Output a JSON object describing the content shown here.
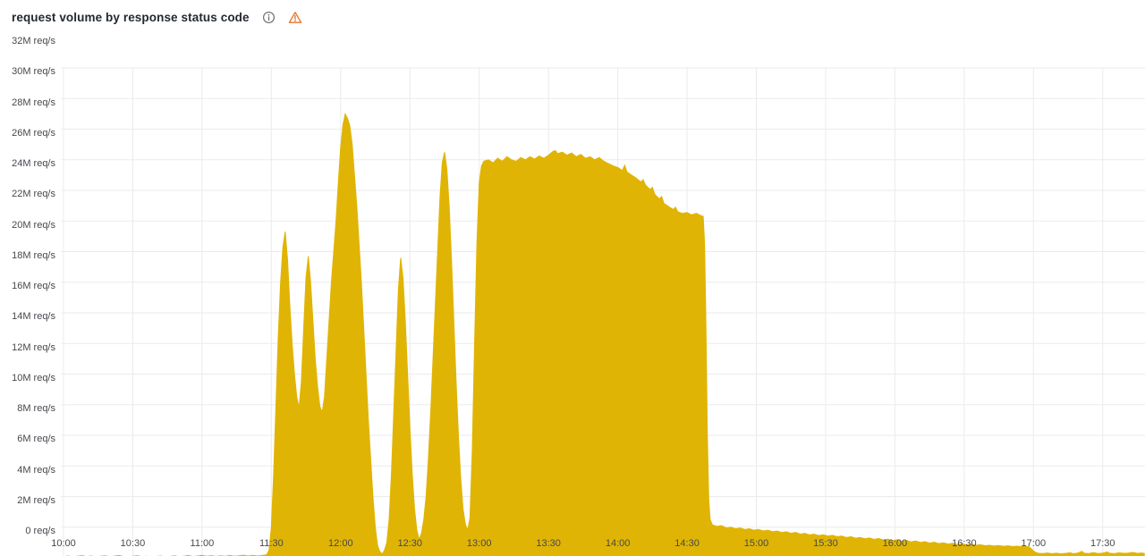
{
  "panel": {
    "title": "request volume by response status code",
    "icons": {
      "info": "info-icon",
      "warning": "warning-icon"
    }
  },
  "colors": {
    "background": "#FFFFFF",
    "series_fill": "#E0B404",
    "gridline": "#EAEBED",
    "axis_text": "#45484D",
    "title_text": "#24292E",
    "info_icon": "#6E7077",
    "warning_icon": "#E8762C"
  },
  "chart_data": {
    "type": "area",
    "title": "request volume by response status code",
    "unit": "req/s",
    "legend_position": "none",
    "grid": true,
    "x_axis": {
      "start_time": "10:00",
      "tick_interval_minutes": 30,
      "total_minutes": 468,
      "tick_labels": [
        "10:00",
        "10:30",
        "11:00",
        "11:30",
        "12:00",
        "12:30",
        "13:00",
        "13:30",
        "14:00",
        "14:30",
        "15:00",
        "15:30",
        "16:00",
        "16:30",
        "17:00",
        "17:30"
      ]
    },
    "y_axis": {
      "min": 0,
      "max": 32000000,
      "tick_step": 2000000,
      "tick_labels": [
        "0 req/s",
        "2M req/s",
        "4M req/s",
        "6M req/s",
        "8M req/s",
        "10M req/s",
        "12M req/s",
        "14M req/s",
        "16M req/s",
        "18M req/s",
        "20M req/s",
        "22M req/s",
        "24M req/s",
        "26M req/s",
        "28M req/s",
        "30M req/s",
        "32M req/s"
      ]
    },
    "series": [
      {
        "name": "request volume",
        "color": "#E0B404",
        "units": "M req/s vs minutes after 10:00",
        "points": [
          [
            0,
            0.07
          ],
          [
            2,
            0.12
          ],
          [
            4,
            0.06
          ],
          [
            6,
            0.1
          ],
          [
            8,
            0.14
          ],
          [
            10,
            0.08
          ],
          [
            12,
            0.12
          ],
          [
            14,
            0.06
          ],
          [
            16,
            0.1
          ],
          [
            18,
            0.13
          ],
          [
            20,
            0.07
          ],
          [
            22,
            0.11
          ],
          [
            24,
            0.15
          ],
          [
            26,
            0.08
          ],
          [
            28,
            0.05
          ],
          [
            30,
            0.1
          ],
          [
            32,
            0.14
          ],
          [
            34,
            0.07
          ],
          [
            36,
            0.1
          ],
          [
            38,
            0.05
          ],
          [
            40,
            0.08
          ],
          [
            42,
            0.12
          ],
          [
            44,
            0.06
          ],
          [
            46,
            0.09
          ],
          [
            48,
            0.13
          ],
          [
            50,
            0.07
          ],
          [
            52,
            0.1
          ],
          [
            54,
            0.15
          ],
          [
            56,
            0.09
          ],
          [
            58,
            0.12
          ],
          [
            60,
            0.16
          ],
          [
            62,
            0.1
          ],
          [
            64,
            0.14
          ],
          [
            66,
            0.09
          ],
          [
            68,
            0.13
          ],
          [
            70,
            0.1
          ],
          [
            72,
            0.15
          ],
          [
            74,
            0.1
          ],
          [
            76,
            0.13
          ],
          [
            78,
            0.17
          ],
          [
            80,
            0.12
          ],
          [
            82,
            0.16
          ],
          [
            84,
            0.12
          ],
          [
            86,
            0.15
          ],
          [
            88,
            0.2
          ],
          [
            89,
            0.5
          ],
          [
            90,
            2
          ],
          [
            91,
            5.5
          ],
          [
            92,
            10
          ],
          [
            93,
            14.5
          ],
          [
            94,
            18
          ],
          [
            95,
            20.3
          ],
          [
            96,
            21.3
          ],
          [
            97,
            19.5
          ],
          [
            98,
            16.5
          ],
          [
            99,
            14
          ],
          [
            100,
            12
          ],
          [
            101,
            10.5
          ],
          [
            102,
            9.8
          ],
          [
            103,
            11.5
          ],
          [
            104,
            15
          ],
          [
            105,
            18.3
          ],
          [
            106,
            19.7
          ],
          [
            107,
            18
          ],
          [
            108,
            15.5
          ],
          [
            109,
            13
          ],
          [
            110,
            11.2
          ],
          [
            111,
            9.9
          ],
          [
            112,
            9.5
          ],
          [
            113,
            10.5
          ],
          [
            114,
            13
          ],
          [
            115,
            15.5
          ],
          [
            116,
            18
          ],
          [
            117,
            20
          ],
          [
            118,
            22
          ],
          [
            119,
            24.5
          ],
          [
            120,
            26.8
          ],
          [
            121,
            28.3
          ],
          [
            122,
            29
          ],
          [
            123,
            28.7
          ],
          [
            124,
            28.2
          ],
          [
            125,
            27
          ],
          [
            126,
            25
          ],
          [
            127,
            23
          ],
          [
            128,
            20.5
          ],
          [
            129,
            18
          ],
          [
            130,
            15
          ],
          [
            131,
            12
          ],
          [
            132,
            9
          ],
          [
            133,
            6.5
          ],
          [
            134,
            4
          ],
          [
            135,
            2
          ],
          [
            136,
            0.8
          ],
          [
            137,
            0.4
          ],
          [
            138,
            0.25
          ],
          [
            139,
            0.5
          ],
          [
            140,
            1
          ],
          [
            141,
            2.5
          ],
          [
            142,
            5.5
          ],
          [
            143,
            9.5
          ],
          [
            144,
            13.5
          ],
          [
            145,
            17.5
          ],
          [
            146,
            19.6
          ],
          [
            147,
            18.3
          ],
          [
            148,
            15.5
          ],
          [
            149,
            12
          ],
          [
            150,
            8.5
          ],
          [
            151,
            5.5
          ],
          [
            152,
            3.2
          ],
          [
            153,
            1.8
          ],
          [
            154,
            1.2
          ],
          [
            155,
            1.6
          ],
          [
            156,
            2.5
          ],
          [
            157,
            4
          ],
          [
            158,
            6.5
          ],
          [
            159,
            9.5
          ],
          [
            160,
            13
          ],
          [
            161,
            16.5
          ],
          [
            162,
            20
          ],
          [
            163,
            23.5
          ],
          [
            164,
            25.8
          ],
          [
            165,
            26.5
          ],
          [
            166,
            25.4
          ],
          [
            167,
            23
          ],
          [
            168,
            19.5
          ],
          [
            169,
            15.5
          ],
          [
            170,
            11.5
          ],
          [
            171,
            8
          ],
          [
            172,
            5.2
          ],
          [
            173,
            3.2
          ],
          [
            174,
            2.2
          ],
          [
            175,
            1.8
          ],
          [
            176,
            2.6
          ],
          [
            177,
            7
          ],
          [
            178,
            14
          ],
          [
            179,
            20.5
          ],
          [
            180,
            24.5
          ],
          [
            181,
            25.6
          ],
          [
            182,
            25.9
          ],
          [
            184,
            26.0
          ],
          [
            186,
            25.8
          ],
          [
            188,
            26.1
          ],
          [
            190,
            25.9
          ],
          [
            192,
            26.2
          ],
          [
            194,
            26.0
          ],
          [
            196,
            25.9
          ],
          [
            198,
            26.15
          ],
          [
            200,
            26.0
          ],
          [
            202,
            26.2
          ],
          [
            204,
            26.05
          ],
          [
            206,
            26.25
          ],
          [
            208,
            26.1
          ],
          [
            210,
            26.3
          ],
          [
            212,
            26.55
          ],
          [
            213,
            26.6
          ],
          [
            214,
            26.4
          ],
          [
            216,
            26.5
          ],
          [
            218,
            26.3
          ],
          [
            220,
            26.45
          ],
          [
            222,
            26.2
          ],
          [
            224,
            26.35
          ],
          [
            226,
            26.1
          ],
          [
            228,
            26.2
          ],
          [
            230,
            26.0
          ],
          [
            232,
            26.15
          ],
          [
            234,
            25.9
          ],
          [
            236,
            25.75
          ],
          [
            238,
            25.6
          ],
          [
            240,
            25.5
          ],
          [
            242,
            25.3
          ],
          [
            243,
            25.65
          ],
          [
            244,
            25.2
          ],
          [
            246,
            25.0
          ],
          [
            248,
            24.8
          ],
          [
            250,
            24.55
          ],
          [
            251,
            24.7
          ],
          [
            252,
            24.35
          ],
          [
            254,
            24.05
          ],
          [
            255,
            24.2
          ],
          [
            256,
            23.75
          ],
          [
            258,
            23.45
          ],
          [
            259,
            23.6
          ],
          [
            260,
            23.15
          ],
          [
            262,
            22.95
          ],
          [
            264,
            22.75
          ],
          [
            265,
            22.9
          ],
          [
            266,
            22.6
          ],
          [
            268,
            22.5
          ],
          [
            270,
            22.55
          ],
          [
            272,
            22.4
          ],
          [
            274,
            22.5
          ],
          [
            276,
            22.35
          ],
          [
            277,
            22.3
          ],
          [
            277.6,
            20.5
          ],
          [
            278.2,
            15
          ],
          [
            278.8,
            8
          ],
          [
            279.4,
            3.8
          ],
          [
            280,
            2.5
          ],
          [
            281,
            2.15
          ],
          [
            283,
            2.05
          ],
          [
            285,
            2.1
          ],
          [
            287,
            1.95
          ],
          [
            289,
            2.0
          ],
          [
            291,
            1.9
          ],
          [
            293,
            1.95
          ],
          [
            295,
            1.85
          ],
          [
            297,
            1.9
          ],
          [
            299,
            1.8
          ],
          [
            301,
            1.85
          ],
          [
            303,
            1.75
          ],
          [
            305,
            1.8
          ],
          [
            307,
            1.7
          ],
          [
            309,
            1.75
          ],
          [
            311,
            1.65
          ],
          [
            313,
            1.7
          ],
          [
            315,
            1.6
          ],
          [
            317,
            1.66
          ],
          [
            319,
            1.55
          ],
          [
            321,
            1.6
          ],
          [
            323,
            1.5
          ],
          [
            325,
            1.55
          ],
          [
            327,
            1.45
          ],
          [
            329,
            1.5
          ],
          [
            331,
            1.42
          ],
          [
            333,
            1.47
          ],
          [
            335,
            1.38
          ],
          [
            337,
            1.42
          ],
          [
            339,
            1.32
          ],
          [
            341,
            1.38
          ],
          [
            343,
            1.28
          ],
          [
            345,
            1.33
          ],
          [
            347,
            1.24
          ],
          [
            349,
            1.3
          ],
          [
            351,
            1.2
          ],
          [
            353,
            1.26
          ],
          [
            355,
            1.16
          ],
          [
            357,
            1.22
          ],
          [
            359,
            1.12
          ],
          [
            361,
            1.18
          ],
          [
            363,
            1.08
          ],
          [
            365,
            1.14
          ],
          [
            367,
            1.04
          ],
          [
            369,
            1.1
          ],
          [
            371,
            1.0
          ],
          [
            373,
            1.06
          ],
          [
            375,
            0.96
          ],
          [
            377,
            1.02
          ],
          [
            379,
            0.93
          ],
          [
            381,
            0.98
          ],
          [
            383,
            0.9
          ],
          [
            385,
            0.95
          ],
          [
            387,
            0.87
          ],
          [
            389,
            0.92
          ],
          [
            391,
            0.85
          ],
          [
            393,
            0.88
          ],
          [
            395,
            0.82
          ],
          [
            397,
            0.85
          ],
          [
            399,
            0.79
          ],
          [
            401,
            0.82
          ],
          [
            403,
            0.77
          ],
          [
            405,
            0.8
          ],
          [
            407,
            0.75
          ],
          [
            409,
            0.78
          ],
          [
            411,
            0.74
          ],
          [
            413,
            0.76
          ],
          [
            415,
            0.73
          ],
          [
            417,
            0.74
          ],
          [
            418,
            0.72
          ],
          [
            419,
            0.6
          ],
          [
            420,
            0.45
          ],
          [
            421,
            0.35
          ],
          [
            422,
            0.3
          ],
          [
            424,
            0.28
          ],
          [
            426,
            0.31
          ],
          [
            428,
            0.27
          ],
          [
            430,
            0.3
          ],
          [
            432,
            0.26
          ],
          [
            434,
            0.29
          ],
          [
            436,
            0.33
          ],
          [
            437,
            0.27
          ],
          [
            439,
            0.3
          ],
          [
            441,
            0.42
          ],
          [
            442,
            0.3
          ],
          [
            444,
            0.28
          ],
          [
            446,
            0.34
          ],
          [
            448,
            0.28
          ],
          [
            450,
            0.31
          ],
          [
            452,
            0.38
          ],
          [
            453,
            0.3
          ],
          [
            455,
            0.27
          ],
          [
            457,
            0.33
          ],
          [
            459,
            0.29
          ],
          [
            461,
            0.31
          ],
          [
            463,
            0.35
          ],
          [
            465,
            0.29
          ],
          [
            467,
            0.31
          ],
          [
            468,
            0.28
          ]
        ]
      }
    ]
  }
}
